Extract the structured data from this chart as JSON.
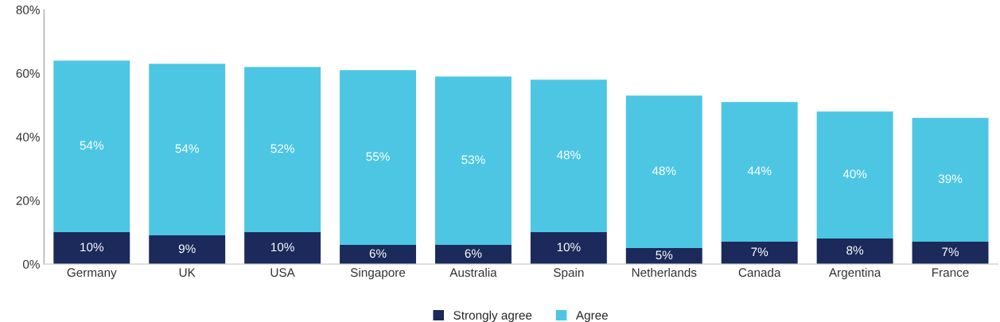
{
  "chart_data": {
    "type": "bar",
    "stacked": true,
    "categories": [
      "Germany",
      "UK",
      "USA",
      "Singapore",
      "Australia",
      "Spain",
      "Netherlands",
      "Canada",
      "Argentina",
      "France"
    ],
    "series": [
      {
        "name": "Strongly agree",
        "color": "#1b2a5a",
        "values": [
          10,
          9,
          10,
          6,
          6,
          10,
          5,
          7,
          8,
          7
        ],
        "value_labels": [
          "10%",
          "9%",
          "10%",
          "6%",
          "6%",
          "10%",
          "5%",
          "7%",
          "8%",
          "7%"
        ]
      },
      {
        "name": "Agree",
        "color": "#4dc6e3",
        "values": [
          54,
          54,
          52,
          55,
          53,
          48,
          48,
          44,
          40,
          39
        ],
        "value_labels": [
          "54%",
          "54%",
          "52%",
          "55%",
          "53%",
          "48%",
          "48%",
          "44%",
          "40%",
          "39%"
        ]
      }
    ],
    "ylim": [
      0,
      80
    ],
    "yticks": [
      {
        "value": 0,
        "label": "0%"
      },
      {
        "value": 20,
        "label": "20%"
      },
      {
        "value": 40,
        "label": "40%"
      },
      {
        "value": 60,
        "label": "60%"
      },
      {
        "value": 80,
        "label": "80%"
      }
    ],
    "grid": false,
    "legend": "bottom"
  }
}
